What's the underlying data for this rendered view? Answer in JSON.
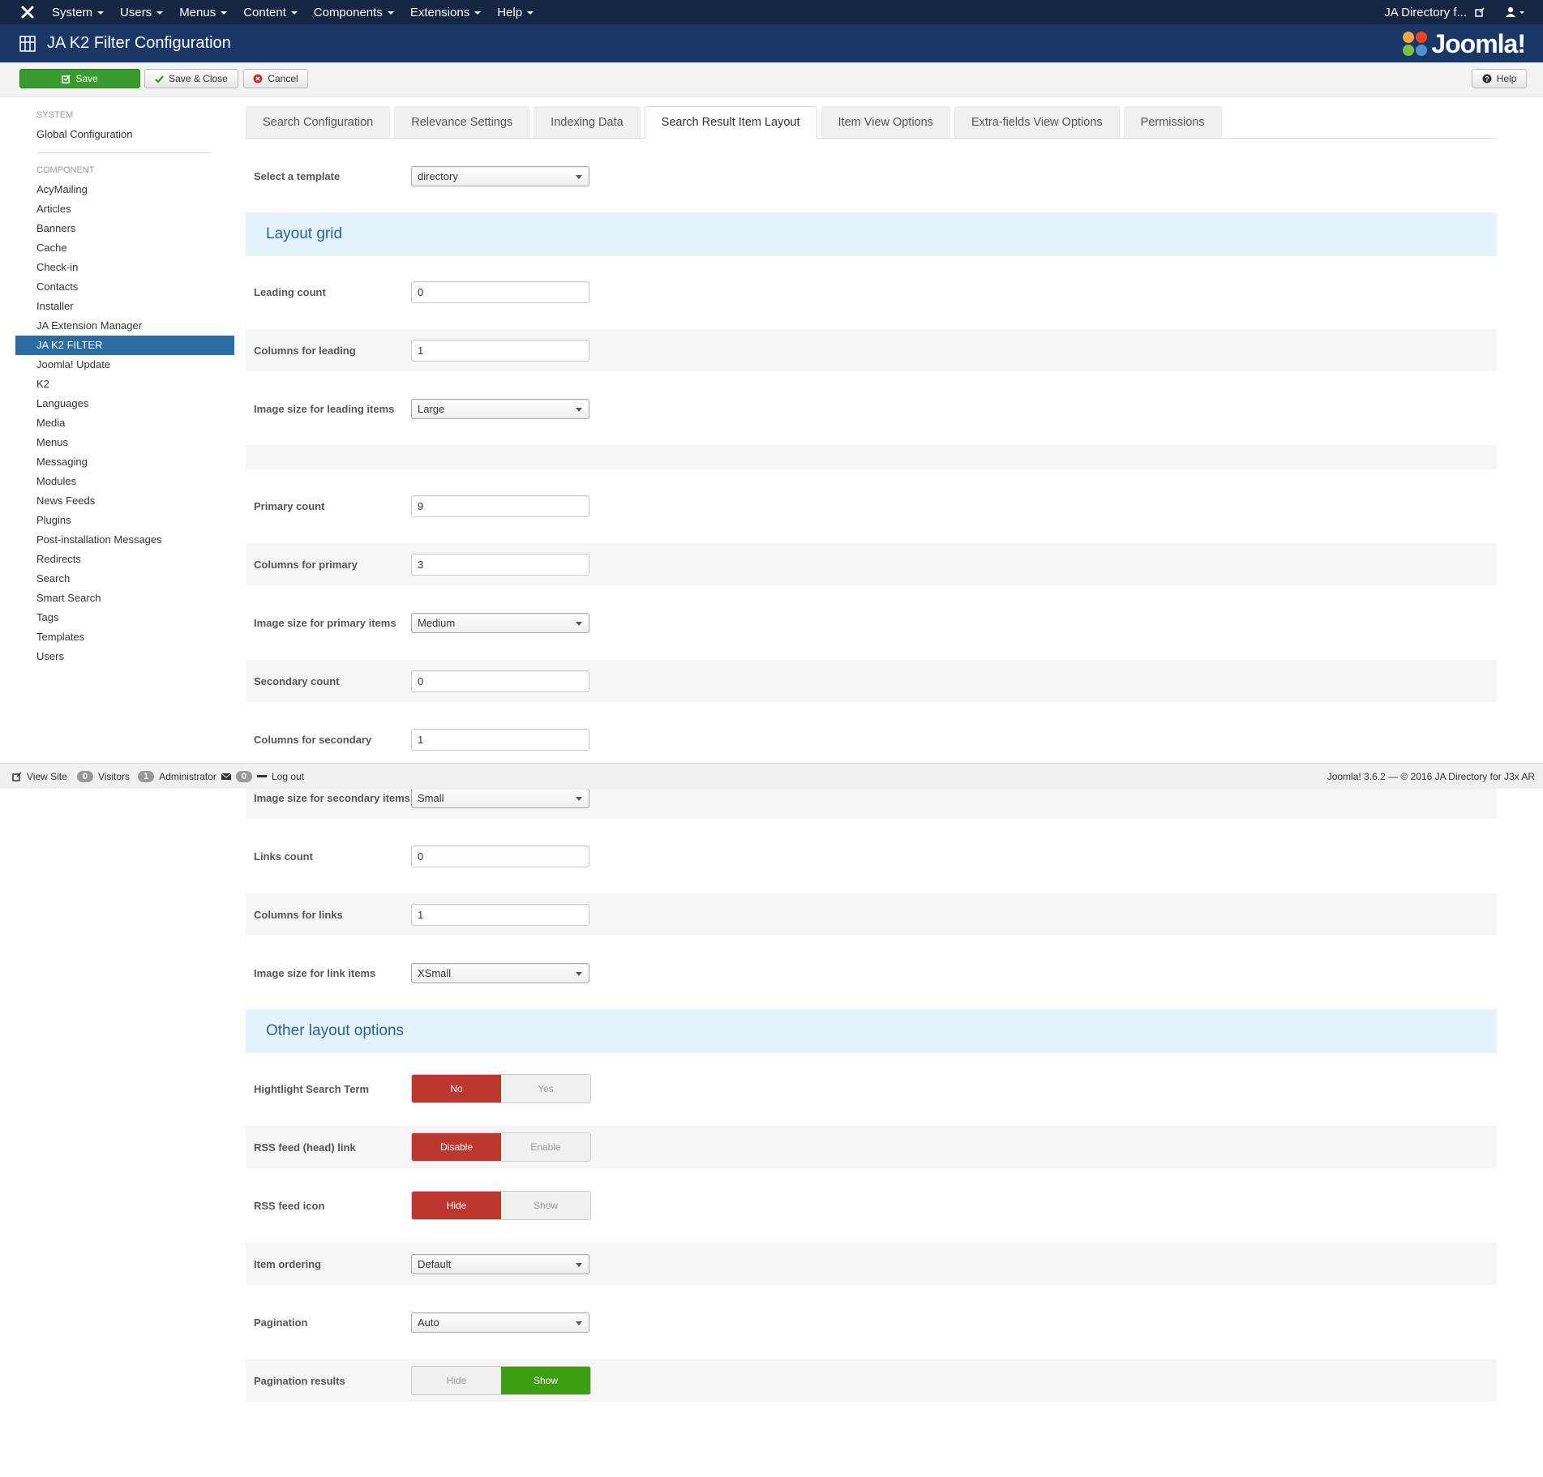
{
  "navbar": {
    "menus": [
      "System",
      "Users",
      "Menus",
      "Content",
      "Components",
      "Extensions",
      "Help"
    ],
    "site": "JA Directory f..."
  },
  "header": {
    "title": "JA K2 Filter Configuration",
    "logo": "Joomla!"
  },
  "toolbar": {
    "save": "Save",
    "save_close": "Save & Close",
    "cancel": "Cancel",
    "help": "Help"
  },
  "sidebar": {
    "system_heading": "SYSTEM",
    "system_items": [
      "Global Configuration"
    ],
    "component_heading": "COMPONENT",
    "component_items": [
      "AcyMailing",
      "Articles",
      "Banners",
      "Cache",
      "Check-in",
      "Contacts",
      "Installer",
      "JA Extension Manager",
      "JA K2 FILTER",
      "Joomla! Update",
      "K2",
      "Languages",
      "Media",
      "Menus",
      "Messaging",
      "Modules",
      "News Feeds",
      "Plugins",
      "Post-installation Messages",
      "Redirects",
      "Search",
      "Smart Search",
      "Tags",
      "Templates",
      "Users"
    ],
    "active_item": 8
  },
  "tabs": {
    "items": [
      "Search Configuration",
      "Relevance Settings",
      "Indexing Data",
      "Search Result Item Layout",
      "Item View Options",
      "Extra-fields View Options",
      "Permissions"
    ],
    "active": 3
  },
  "form": {
    "template": {
      "label": "Select a template",
      "type": "select",
      "value": "directory"
    },
    "sections": [
      {
        "title": "Layout grid",
        "groups": [
          [
            {
              "label": "Leading count",
              "type": "text",
              "value": "0"
            },
            {
              "label": "Columns for leading",
              "type": "text",
              "value": "1"
            },
            {
              "label": "Image size for leading items",
              "type": "select",
              "value": "Large"
            }
          ],
          [
            {
              "label": "Primary count",
              "type": "text",
              "value": "9"
            },
            {
              "label": "Columns for primary",
              "type": "text",
              "value": "3"
            },
            {
              "label": "Image size for primary items",
              "type": "select",
              "value": "Medium"
            },
            {
              "label": "Secondary count",
              "type": "text",
              "value": "0"
            },
            {
              "label": "Columns for secondary",
              "type": "text",
              "value": "1"
            },
            {
              "label": "Image size for secondary items",
              "type": "select",
              "value": "Small"
            },
            {
              "label": "Links count",
              "type": "text",
              "value": "0"
            },
            {
              "label": "Columns for links",
              "type": "text",
              "value": "1"
            },
            {
              "label": "Image size for link items",
              "type": "select",
              "value": "XSmall"
            }
          ]
        ]
      },
      {
        "title": "Other layout options",
        "groups": [
          [
            {
              "label": "Hightlight Search Term",
              "type": "toggle",
              "options": [
                "No",
                "Yes"
              ],
              "selected": 0,
              "color": "#bd362f"
            },
            {
              "label": "RSS feed (head) link",
              "type": "toggle",
              "options": [
                "Disable",
                "Enable"
              ],
              "selected": 0,
              "color": "#bd362f"
            },
            {
              "label": "RSS feed icon",
              "type": "toggle",
              "options": [
                "Hide",
                "Show"
              ],
              "selected": 0,
              "color": "#bd362f"
            },
            {
              "label": "Item ordering",
              "type": "select",
              "value": "Default"
            },
            {
              "label": "Pagination",
              "type": "select",
              "value": "Auto"
            },
            {
              "label": "Pagination results",
              "type": "toggle",
              "options": [
                "Hide",
                "Show"
              ],
              "selected": 1,
              "color": "#3c9f13"
            }
          ]
        ]
      }
    ]
  },
  "status": {
    "view_site": "View Site",
    "visitors_count": "0",
    "visitors": "Visitors",
    "admins_count": "1",
    "admins": "Administrator",
    "messages_count": "0",
    "logout": "Log out",
    "version": "Joomla! 3.6.2 — © 2016 JA Directory for J3x AR"
  }
}
